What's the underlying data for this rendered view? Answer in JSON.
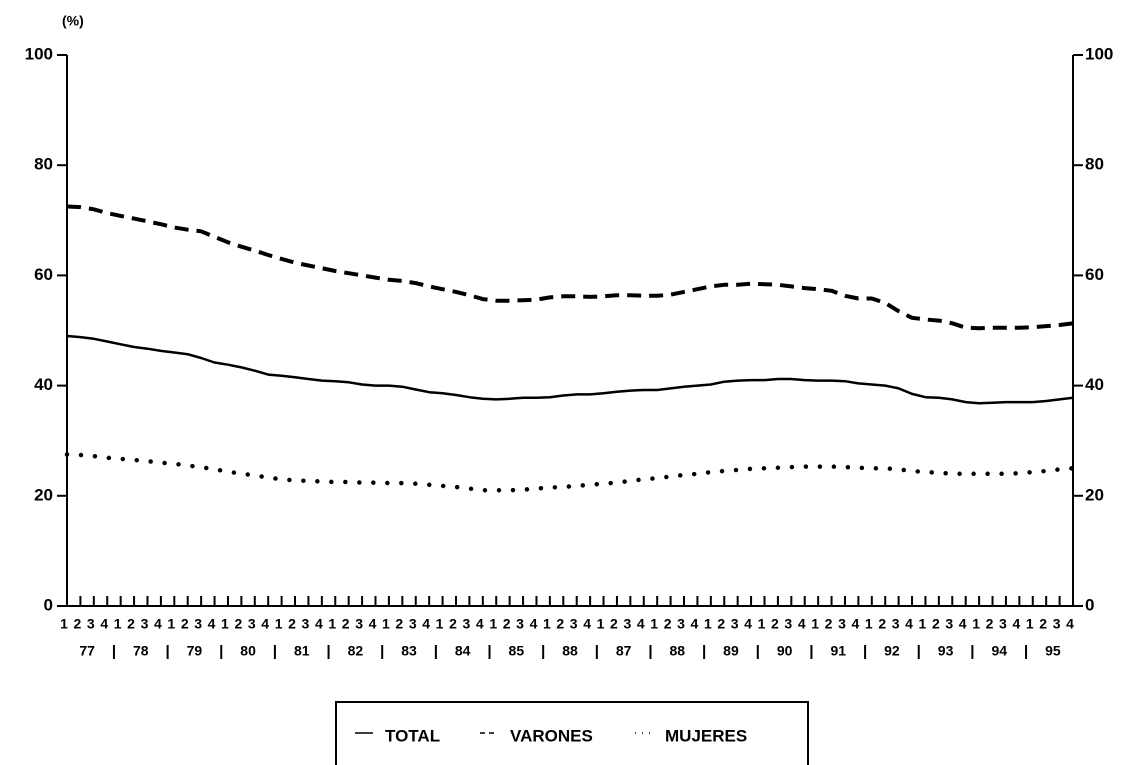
{
  "chart_data": {
    "type": "line",
    "y_label": "(%)",
    "categories": [
      "1",
      "2",
      "3",
      "4",
      "1",
      "2",
      "3",
      "4",
      "1",
      "2",
      "3",
      "4",
      "1",
      "2",
      "3",
      "4",
      "1",
      "2",
      "3",
      "4",
      "1",
      "2",
      "3",
      "4",
      "1",
      "2",
      "3",
      "4",
      "1",
      "2",
      "3",
      "4",
      "1",
      "2",
      "3",
      "4",
      "1",
      "2",
      "3",
      "4",
      "1",
      "2",
      "3",
      "4",
      "1",
      "2",
      "3",
      "4",
      "1",
      "2",
      "3",
      "4",
      "1",
      "2",
      "3",
      "4",
      "1",
      "2",
      "3",
      "4",
      "1",
      "2",
      "3",
      "4",
      "1",
      "2",
      "3",
      "4",
      "1",
      "2",
      "3",
      "4",
      "1",
      "2",
      "3",
      "4"
    ],
    "year_labels": [
      "77",
      "78",
      "79",
      "80",
      "81",
      "82",
      "83",
      "84",
      "85",
      "88",
      "87",
      "88",
      "89",
      "90",
      "91",
      "92",
      "93",
      "94",
      "95"
    ],
    "series": [
      {
        "name": "TOTAL",
        "color": "#000000",
        "dash": "solid",
        "values": [
          49,
          48.8,
          48.5,
          48,
          47.5,
          47,
          46.7,
          46.3,
          46,
          45.7,
          45,
          44.2,
          43.8,
          43.3,
          42.7,
          42,
          41.8,
          41.5,
          41.2,
          40.9,
          40.8,
          40.6,
          40.2,
          40,
          40,
          39.8,
          39.3,
          38.8,
          38.6,
          38.3,
          37.9,
          37.6,
          37.5,
          37.6,
          37.8,
          37.8,
          37.9,
          38.2,
          38.4,
          38.4,
          38.6,
          38.9,
          39.1,
          39.2,
          39.2,
          39.5,
          39.8,
          40,
          40.2,
          40.7,
          40.9,
          41,
          41,
          41.2,
          41.2,
          41,
          40.9,
          40.9,
          40.8,
          40.4,
          40.2,
          40,
          39.5,
          38.5,
          37.9,
          37.8,
          37.5,
          37,
          36.8,
          36.9,
          37,
          37,
          37,
          37.2,
          37.5,
          37.8
        ]
      },
      {
        "name": "VARONES",
        "color": "#000000",
        "dash": "dashed",
        "values": [
          72.5,
          72.4,
          72,
          71.3,
          70.8,
          70.3,
          69.8,
          69.3,
          68.7,
          68.3,
          68,
          67,
          66,
          65.2,
          64.5,
          63.7,
          63,
          62.3,
          61.8,
          61.3,
          60.8,
          60.4,
          60,
          59.6,
          59.2,
          59,
          58.6,
          58,
          57.5,
          57,
          56.4,
          55.7,
          55.4,
          55.4,
          55.5,
          55.6,
          56,
          56.2,
          56.2,
          56.1,
          56.2,
          56.4,
          56.4,
          56.3,
          56.3,
          56.5,
          57,
          57.5,
          58,
          58.3,
          58.3,
          58.5,
          58.4,
          58.3,
          58,
          57.7,
          57.5,
          57.2,
          56.3,
          55.8,
          55.8,
          55,
          53.5,
          52.3,
          52,
          51.8,
          51.3,
          50.5,
          50.4,
          50.5,
          50.5,
          50.5,
          50.6,
          50.8,
          51,
          51.3
        ]
      },
      {
        "name": "MUJERES",
        "color": "#000000",
        "dash": "dotted",
        "values": [
          27.5,
          27.4,
          27.2,
          26.9,
          26.7,
          26.5,
          26.3,
          26,
          25.8,
          25.5,
          25.2,
          24.8,
          24.4,
          24,
          23.7,
          23.3,
          23,
          22.8,
          22.7,
          22.6,
          22.5,
          22.5,
          22.4,
          22.4,
          22.3,
          22.3,
          22.2,
          22,
          21.8,
          21.6,
          21.3,
          21,
          21,
          21,
          21.1,
          21.3,
          21.5,
          21.6,
          21.8,
          22,
          22.2,
          22.4,
          22.7,
          23,
          23.2,
          23.5,
          23.8,
          24,
          24.3,
          24.5,
          24.7,
          24.9,
          25,
          25.1,
          25.2,
          25.3,
          25.3,
          25.3,
          25.2,
          25.1,
          25,
          25,
          24.8,
          24.5,
          24.3,
          24.2,
          24,
          24,
          24,
          24,
          24,
          24.1,
          24.3,
          24.5,
          24.8,
          25
        ]
      }
    ],
    "ylim": [
      0,
      100
    ],
    "yticks": [
      0,
      20,
      40,
      60,
      80,
      100
    ],
    "y2lim": [
      0,
      100
    ],
    "y2ticks": [
      0,
      20,
      40,
      60,
      80,
      100
    ]
  }
}
